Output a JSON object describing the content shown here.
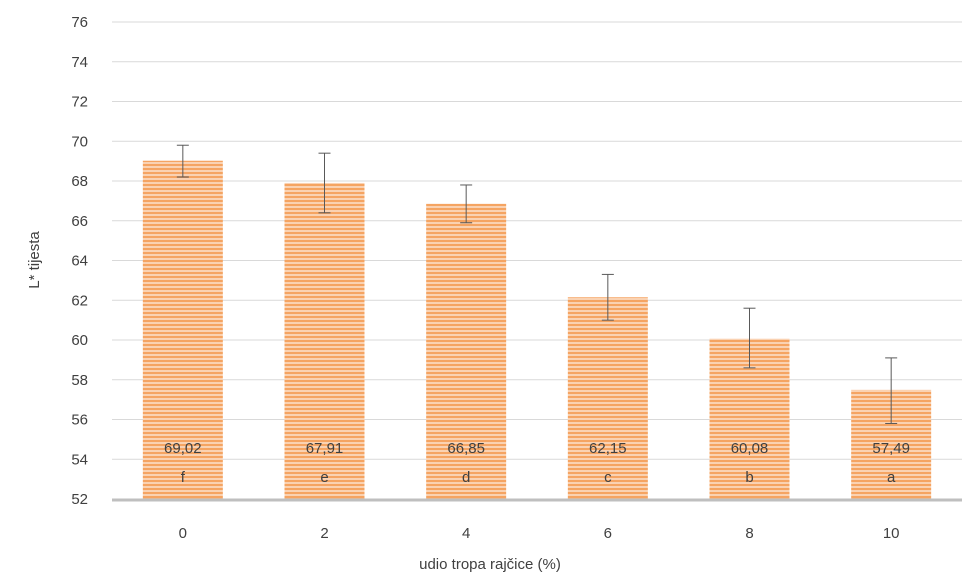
{
  "chart_data": {
    "type": "bar",
    "xlabel": "udio tropa rajčice (%)",
    "ylabel": "L* tijesta",
    "ylim": [
      52,
      76
    ],
    "ytick_step": 2,
    "grid": true,
    "categories": [
      "0",
      "2",
      "4",
      "6",
      "8",
      "10"
    ],
    "values": [
      69.02,
      67.91,
      66.85,
      62.15,
      60.08,
      57.49
    ],
    "value_labels": [
      "69,02",
      "67,91",
      "66,85",
      "62,15",
      "60,08",
      "57,49"
    ],
    "letters": [
      "f",
      "e",
      "d",
      "c",
      "b",
      "a"
    ],
    "error_low": [
      68.2,
      66.4,
      65.9,
      61.0,
      58.6,
      55.8
    ],
    "error_high": [
      69.8,
      69.4,
      67.8,
      63.3,
      61.6,
      59.1
    ],
    "colors": {
      "bar_fill": "#f5a462",
      "bar_stripe": "#ffffff",
      "axis_line": "#bfbfbf",
      "grid_line": "#d9d9d9",
      "error_bar": "#595959",
      "text": "#404040"
    }
  }
}
